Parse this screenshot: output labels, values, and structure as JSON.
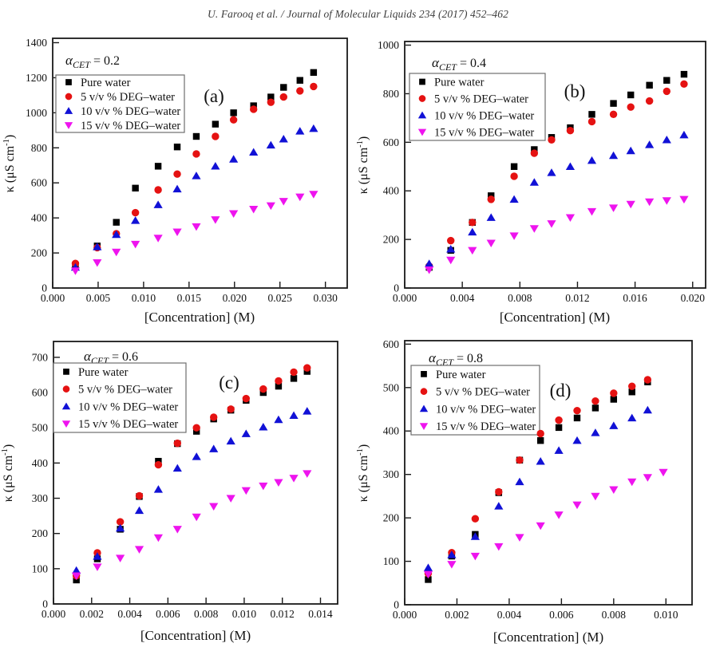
{
  "header": {
    "citation": "U. Farooq et al. / Journal of Molecular Liquids 234 (2017) 452–462"
  },
  "colors": {
    "frame": "#1a1a1a",
    "tick": "#1a1a1a",
    "legend_border": "#6e6e6e",
    "legend_fill": "#ffffff",
    "pure_water": "#000000",
    "deg5": "#e51212",
    "deg10": "#1111d6",
    "deg15": "#ee14ee"
  },
  "ylabel_parts": {
    "main": "κ (μS cm",
    "sup": "-1",
    "close": ")"
  },
  "xlabel": "[Concentration] (M)",
  "legend_labels": [
    "Pure water",
    "5 v/v % DEG–water",
    "10 v/v % DEG–water",
    "15 v/v % DEG–water"
  ],
  "chart_data": [
    {
      "type": "scatter",
      "panel_id": "a",
      "panel_label": "(a)",
      "alpha": {
        "base": "α",
        "sub": "CET",
        "rest": "= 0.2"
      },
      "xlabel": "[Concentration] (M)",
      "ylabel": "κ (μS cm⁻¹)",
      "xlim": [
        0,
        0.0324
      ],
      "ylim": [
        0,
        1425
      ],
      "xticks": {
        "values": [
          0,
          0.005,
          0.01,
          0.015,
          0.02,
          0.025,
          0.03
        ],
        "labels": [
          "0.000",
          "0.005",
          "0.010",
          "0.015",
          "0.020",
          "0.025",
          "0.030"
        ]
      },
      "yticks": {
        "values": [
          0,
          200,
          400,
          600,
          800,
          1000,
          1200,
          1400
        ],
        "labels": [
          "0",
          "200",
          "400",
          "600",
          "800",
          "1000",
          "1200",
          "1400"
        ]
      },
      "legend_position": "upper-left",
      "grid": false,
      "series": [
        {
          "name": "Pure water",
          "marker": "square",
          "color": "#000000",
          "x": [
            0.0025,
            0.0049,
            0.007,
            0.0091,
            0.0116,
            0.0137,
            0.0158,
            0.0179,
            0.0199,
            0.0221,
            0.024,
            0.0254,
            0.0272,
            0.0287
          ],
          "y": [
            130,
            240,
            375,
            570,
            695,
            805,
            865,
            935,
            1000,
            1040,
            1090,
            1145,
            1185,
            1230
          ]
        },
        {
          "name": "5 v/v % DEG–water",
          "marker": "circle",
          "color": "#e51212",
          "x": [
            0.0025,
            0.0049,
            0.007,
            0.0091,
            0.0116,
            0.0137,
            0.0158,
            0.0179,
            0.0199,
            0.0221,
            0.024,
            0.0254,
            0.0272,
            0.0287
          ],
          "y": [
            140,
            230,
            310,
            430,
            560,
            650,
            765,
            865,
            960,
            1020,
            1060,
            1090,
            1125,
            1150
          ]
        },
        {
          "name": "10 v/v % DEG–water",
          "marker": "triangle-up",
          "color": "#1111d6",
          "x": [
            0.0025,
            0.0049,
            0.007,
            0.0091,
            0.0116,
            0.0137,
            0.0158,
            0.0179,
            0.0199,
            0.0221,
            0.024,
            0.0254,
            0.0272,
            0.0287
          ],
          "y": [
            118,
            235,
            305,
            385,
            475,
            565,
            640,
            695,
            735,
            775,
            815,
            850,
            895,
            910
          ]
        },
        {
          "name": "15 v/v % DEG–water",
          "marker": "triangle-down",
          "color": "#ee14ee",
          "x": [
            0.0025,
            0.0049,
            0.007,
            0.0091,
            0.0116,
            0.0137,
            0.0158,
            0.0179,
            0.0199,
            0.0221,
            0.024,
            0.0254,
            0.0272,
            0.0287
          ],
          "y": [
            98,
            145,
            205,
            250,
            285,
            320,
            350,
            390,
            425,
            450,
            470,
            495,
            520,
            535
          ]
        }
      ]
    },
    {
      "type": "scatter",
      "panel_id": "b",
      "panel_label": "(b)",
      "alpha": {
        "base": "α",
        "sub": "CET",
        "rest": "= 0.4"
      },
      "xlabel": "[Concentration] (M)",
      "ylabel": "κ (μS cm⁻¹)",
      "xlim": [
        0,
        0.0209
      ],
      "ylim": [
        0,
        1015
      ],
      "xticks": {
        "values": [
          0,
          0.004,
          0.008,
          0.012,
          0.016,
          0.02
        ],
        "labels": [
          "0.000",
          "0.004",
          "0.008",
          "0.012",
          "0.016",
          "0.020"
        ]
      },
      "yticks": {
        "values": [
          0,
          200,
          400,
          600,
          800,
          1000
        ],
        "labels": [
          "0",
          "200",
          "400",
          "600",
          "800",
          "1000"
        ]
      },
      "legend_position": "upper-left",
      "grid": false,
      "series": [
        {
          "name": "Pure water",
          "marker": "square",
          "color": "#000000",
          "x": [
            0.0017,
            0.0032,
            0.0047,
            0.006,
            0.0076,
            0.009,
            0.0102,
            0.0115,
            0.013,
            0.0145,
            0.0157,
            0.017,
            0.0182,
            0.0194
          ],
          "y": [
            85,
            155,
            270,
            380,
            500,
            570,
            620,
            660,
            715,
            760,
            795,
            835,
            855,
            880
          ]
        },
        {
          "name": "5 v/v % DEG–water",
          "marker": "circle",
          "color": "#e51212",
          "x": [
            0.0017,
            0.0032,
            0.0047,
            0.006,
            0.0076,
            0.009,
            0.0102,
            0.0115,
            0.013,
            0.0145,
            0.0157,
            0.017,
            0.0182,
            0.0194
          ],
          "y": [
            90,
            195,
            270,
            365,
            460,
            555,
            610,
            648,
            685,
            715,
            745,
            770,
            810,
            840
          ]
        },
        {
          "name": "10 v/v % DEG–water",
          "marker": "triangle-up",
          "color": "#1111d6",
          "x": [
            0.0017,
            0.0032,
            0.0047,
            0.006,
            0.0076,
            0.009,
            0.0102,
            0.0115,
            0.013,
            0.0145,
            0.0157,
            0.017,
            0.0182,
            0.0194
          ],
          "y": [
            100,
            160,
            230,
            290,
            365,
            435,
            475,
            500,
            525,
            545,
            565,
            590,
            610,
            630
          ]
        },
        {
          "name": "15 v/v % DEG–water",
          "marker": "triangle-down",
          "color": "#ee14ee",
          "x": [
            0.0017,
            0.0032,
            0.0047,
            0.006,
            0.0076,
            0.009,
            0.0102,
            0.0115,
            0.013,
            0.0145,
            0.0157,
            0.017,
            0.0182,
            0.0194
          ],
          "y": [
            75,
            115,
            155,
            185,
            215,
            245,
            265,
            290,
            315,
            330,
            345,
            355,
            360,
            365
          ]
        }
      ]
    },
    {
      "type": "scatter",
      "panel_id": "c",
      "panel_label": "(c)",
      "alpha": {
        "base": "α",
        "sub": "CET",
        "rest": "= 0.6"
      },
      "xlabel": "[Concentration] (M)",
      "ylabel": "κ (μS cm⁻¹)",
      "xlim": [
        0,
        0.0149
      ],
      "ylim": [
        0,
        745
      ],
      "xticks": {
        "values": [
          0,
          0.002,
          0.004,
          0.006,
          0.008,
          0.01,
          0.012,
          0.014
        ],
        "labels": [
          "0.000",
          "0.002",
          "0.004",
          "0.006",
          "0.008",
          "0.010",
          "0.012",
          "0.014"
        ]
      },
      "yticks": {
        "values": [
          0,
          100,
          200,
          300,
          400,
          500,
          600,
          700
        ],
        "labels": [
          "0",
          "100",
          "200",
          "300",
          "400",
          "500",
          "600",
          "700"
        ]
      },
      "legend_position": "upper-left",
      "grid": false,
      "series": [
        {
          "name": "Pure water",
          "marker": "square",
          "color": "#000000",
          "x": [
            0.0012,
            0.0023,
            0.0035,
            0.0045,
            0.0055,
            0.0065,
            0.0075,
            0.0084,
            0.0093,
            0.0101,
            0.011,
            0.0118,
            0.0126,
            0.0133
          ],
          "y": [
            68,
            128,
            212,
            305,
            405,
            455,
            490,
            525,
            550,
            578,
            600,
            618,
            640,
            660
          ]
        },
        {
          "name": "5 v/v % DEG–water",
          "marker": "circle",
          "color": "#e51212",
          "x": [
            0.0012,
            0.0023,
            0.0035,
            0.0045,
            0.0055,
            0.0065,
            0.0075,
            0.0084,
            0.0093,
            0.0101,
            0.011,
            0.0118,
            0.0126,
            0.0133
          ],
          "y": [
            80,
            145,
            233,
            307,
            395,
            456,
            500,
            530,
            553,
            583,
            610,
            633,
            658,
            670
          ]
        },
        {
          "name": "10 v/v % DEG–water",
          "marker": "triangle-up",
          "color": "#1111d6",
          "x": [
            0.0012,
            0.0023,
            0.0035,
            0.0045,
            0.0055,
            0.0065,
            0.0075,
            0.0084,
            0.0093,
            0.0101,
            0.011,
            0.0118,
            0.0126,
            0.0133
          ],
          "y": [
            95,
            135,
            215,
            265,
            325,
            385,
            418,
            440,
            462,
            483,
            502,
            523,
            535,
            547
          ]
        },
        {
          "name": "15 v/v % DEG–water",
          "marker": "triangle-down",
          "color": "#ee14ee",
          "x": [
            0.0012,
            0.0023,
            0.0035,
            0.0045,
            0.0055,
            0.0065,
            0.0075,
            0.0084,
            0.0093,
            0.0101,
            0.011,
            0.0118,
            0.0126,
            0.0133
          ],
          "y": [
            80,
            105,
            130,
            155,
            188,
            212,
            247,
            277,
            300,
            322,
            335,
            345,
            357,
            370
          ]
        }
      ]
    },
    {
      "type": "scatter",
      "panel_id": "d",
      "panel_label": "(d)",
      "alpha": {
        "base": "α",
        "sub": "CET",
        "rest": "= 0.8"
      },
      "xlabel": "[Concentration] (M)",
      "ylabel": "κ (μS cm⁻¹)",
      "xlim": [
        0,
        0.011
      ],
      "ylim": [
        0,
        608
      ],
      "xticks": {
        "values": [
          0,
          0.002,
          0.004,
          0.006,
          0.008,
          0.01
        ],
        "labels": [
          "0.000",
          "0.002",
          "0.004",
          "0.006",
          "0.008",
          "0.010"
        ]
      },
      "yticks": {
        "values": [
          0,
          100,
          200,
          300,
          400,
          500,
          600
        ],
        "labels": [
          "0",
          "100",
          "200",
          "300",
          "400",
          "500",
          "600"
        ]
      },
      "legend_position": "upper-left",
      "grid": false,
      "series": [
        {
          "name": "Pure water",
          "marker": "square",
          "color": "#000000",
          "x": [
            0.0009,
            0.0018,
            0.0027,
            0.0036,
            0.0044,
            0.0052,
            0.0059,
            0.0066,
            0.0073,
            0.008,
            0.0087,
            0.0093
          ],
          "y": [
            58,
            112,
            162,
            258,
            333,
            378,
            408,
            430,
            453,
            473,
            490,
            513
          ]
        },
        {
          "name": "5 v/v % DEG–water",
          "marker": "circle",
          "color": "#e51212",
          "x": [
            0.0009,
            0.0018,
            0.0027,
            0.0036,
            0.0044,
            0.0052,
            0.0059,
            0.0066,
            0.0073,
            0.008,
            0.0087,
            0.0093
          ],
          "y": [
            72,
            120,
            198,
            260,
            333,
            394,
            425,
            447,
            469,
            487,
            503,
            518
          ]
        },
        {
          "name": "10 v/v % DEG–water",
          "marker": "triangle-up",
          "color": "#1111d6",
          "x": [
            0.0009,
            0.0018,
            0.0027,
            0.0036,
            0.0044,
            0.0052,
            0.0059,
            0.0066,
            0.0073,
            0.008,
            0.0087,
            0.0093
          ],
          "y": [
            85,
            115,
            157,
            227,
            283,
            330,
            355,
            378,
            396,
            412,
            430,
            448
          ]
        },
        {
          "name": "15 v/v % DEG–water",
          "marker": "triangle-down",
          "color": "#ee14ee",
          "x": [
            0.0009,
            0.0018,
            0.0027,
            0.0036,
            0.0044,
            0.0052,
            0.0059,
            0.0066,
            0.0073,
            0.008,
            0.0087,
            0.0093,
            0.0099
          ],
          "y": [
            70,
            93,
            112,
            134,
            155,
            182,
            207,
            230,
            250,
            265,
            283,
            293,
            305
          ]
        }
      ]
    }
  ]
}
